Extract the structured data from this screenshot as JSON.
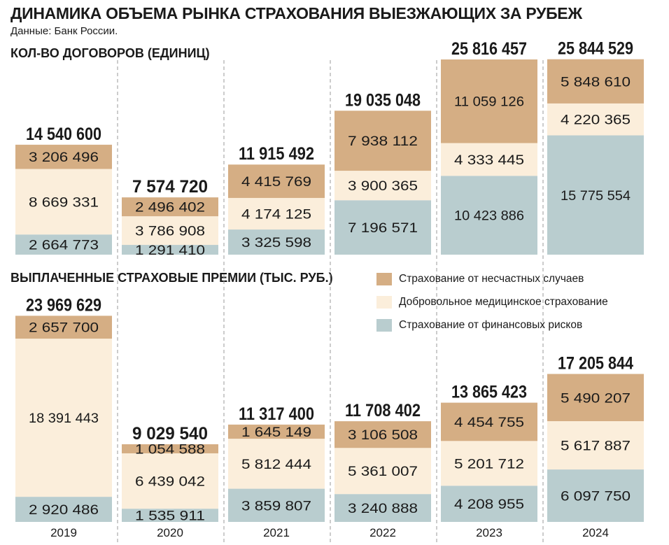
{
  "title": "ДИНАМИКА ОБЪЕМА РЫНКА СТРАХОВАНИЯ ВЫЕЗЖАЮЩИХ ЗА РУБЕЖ",
  "source": "Данные: Банк России.",
  "colors": {
    "accident": "#d5ae84",
    "medical": "#fbeedb",
    "financial": "#b9cdcf",
    "separator": "#9a9a9a"
  },
  "legend": [
    {
      "label": "Страхование от несчастных случаев",
      "color": "#d5ae84"
    },
    {
      "label": "Добровольное медицинское страхование",
      "color": "#fbeedb"
    },
    {
      "label": "Страхование от финансовых рисков",
      "color": "#b9cdcf"
    }
  ],
  "chart_data": [
    {
      "type": "bar",
      "stacked": true,
      "title": "КОЛ-ВО ДОГОВОРОВ (ЕДИНИЦ)",
      "categories": [
        "2019",
        "2020",
        "2021",
        "2022",
        "2023",
        "2024"
      ],
      "totals": [
        "14 540 600",
        "7 574 720",
        "11 915 492",
        "19 035 048",
        "25 816 457",
        "25 844 529"
      ],
      "total_values": [
        14540600,
        7574720,
        11915492,
        19035048,
        25816457,
        25844529
      ],
      "series": [
        {
          "name": "Страхование от финансовых рисков",
          "values": [
            2664773,
            1291410,
            3325598,
            7196571,
            10423886,
            15775554
          ],
          "labels": [
            "2 664 773",
            "1 291 410",
            "3 325 598",
            "7 196 571",
            "10 423 886",
            "15 775 554"
          ]
        },
        {
          "name": "Добровольное медицинское страхование",
          "values": [
            8669331,
            3786908,
            4174125,
            3900365,
            4333445,
            4220365
          ],
          "labels": [
            "8 669 331",
            "3 786 908",
            "4 174 125",
            "3 900 365",
            "4 333 445",
            "4 220 365"
          ]
        },
        {
          "name": "Страхование от несчастных случаев",
          "values": [
            3206496,
            2496402,
            4415769,
            7938112,
            11059126,
            5848610
          ],
          "labels": [
            "3 206 496",
            "2 496 402",
            "4 415 769",
            "7 938 112",
            "11 059 126",
            "5 848 610"
          ]
        }
      ]
    },
    {
      "type": "bar",
      "stacked": true,
      "title": "ВЫПЛАЧЕННЫЕ СТРАХОВЫЕ ПРЕМИИ (ТЫС. РУБ.)",
      "categories": [
        "2019",
        "2020",
        "2021",
        "2022",
        "2023",
        "2024"
      ],
      "totals": [
        "23 969 629",
        "9 029 540",
        "11 317 400",
        "11 708 402",
        "13 865 423",
        "17 205 844"
      ],
      "total_values": [
        23969629,
        9029540,
        11317400,
        11708402,
        13865423,
        17205844
      ],
      "series": [
        {
          "name": "Страхование от финансовых рисков",
          "values": [
            2920486,
            1535911,
            3859807,
            3240888,
            4208955,
            6097750
          ],
          "labels": [
            "2 920 486",
            "1 535 911",
            "3 859 807",
            "3 240 888",
            "4 208 955",
            "6 097 750"
          ]
        },
        {
          "name": "Добровольное медицинское страхование",
          "values": [
            18391443,
            6439042,
            5812444,
            5361007,
            5201712,
            5617887
          ],
          "labels": [
            "18 391 443",
            "6 439 042",
            "5 812 444",
            "5 361 007",
            "5 201 712",
            "5 617 887"
          ]
        },
        {
          "name": "Страхование от несчастных случаев",
          "values": [
            2657700,
            1054588,
            1645149,
            3106508,
            4454755,
            5490207
          ],
          "labels": [
            "2 657 700",
            "1 054 588",
            "1 645 149",
            "3 106 508",
            "4 454 755",
            "5 490 207"
          ]
        }
      ]
    }
  ]
}
